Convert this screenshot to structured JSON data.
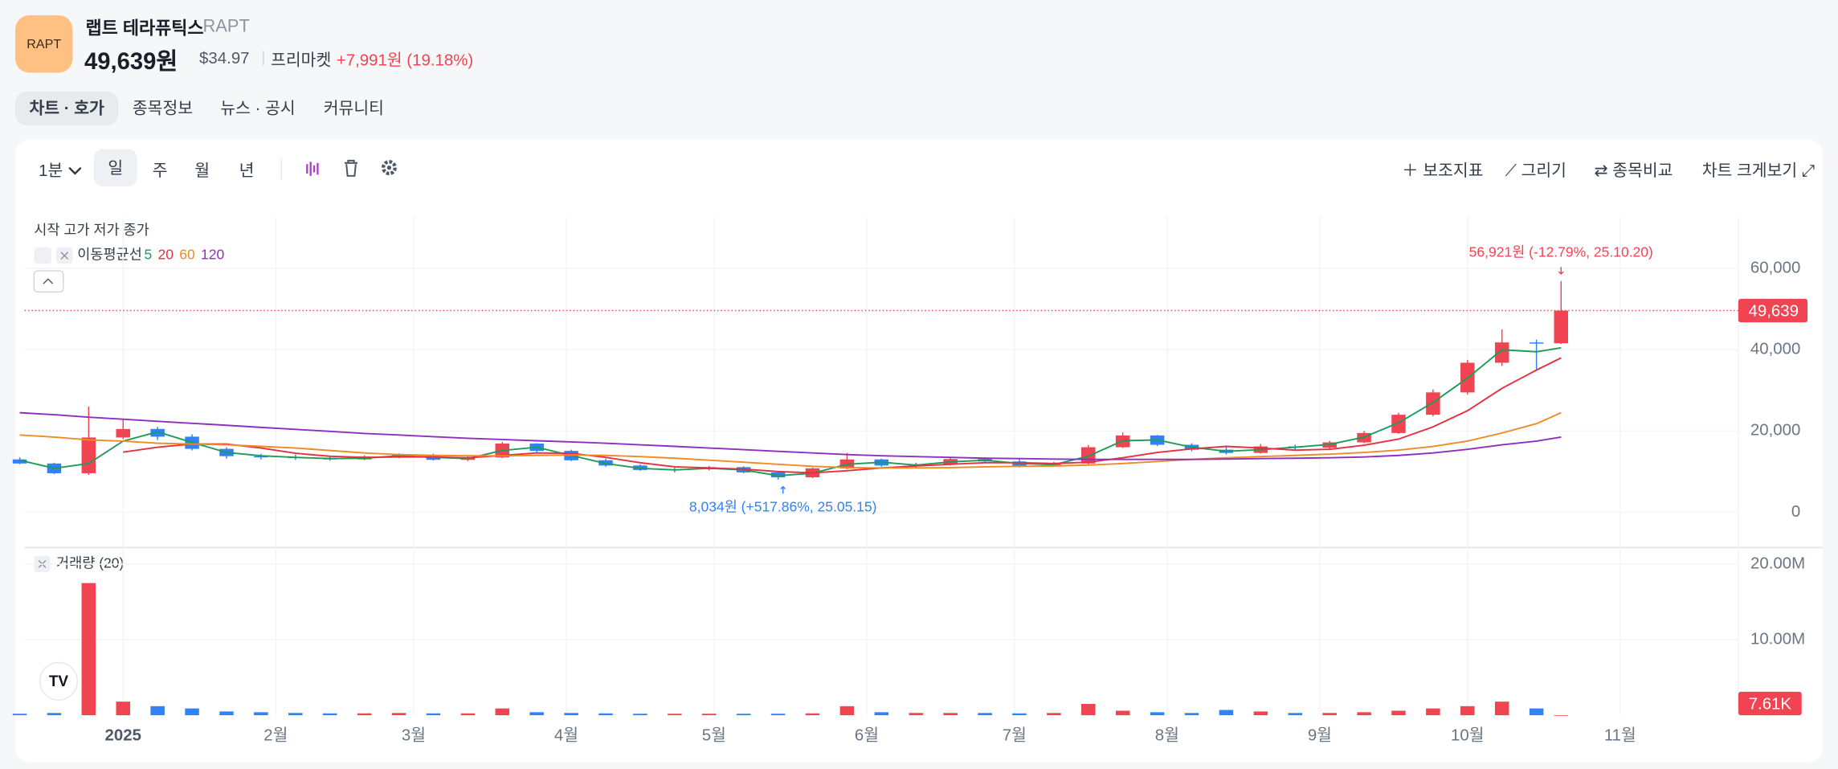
{
  "header": {
    "logo_text": "RAPT",
    "name": "랩트 테라퓨틱스",
    "ticker": "RAPT",
    "price": "49,639원",
    "usd_price": "$34.97",
    "session": "프리마켓",
    "change": "+7,991원 (19.18%)"
  },
  "tabs": [
    "차트 · 호가",
    "종목정보",
    "뉴스 · 공시",
    "커뮤니티"
  ],
  "toolbar": {
    "interval": "1분",
    "periods": [
      "일",
      "주",
      "월",
      "년"
    ],
    "actions": [
      "보조지표",
      "그리기",
      "종목비교",
      "차트 크게보기"
    ]
  },
  "chart_data": {
    "type": "candlestick",
    "legend_title": "시작 고가 저가 종가",
    "ma_label": "이동평균선",
    "up_color": "#f04452",
    "down_color": "#3182f6",
    "grid": true,
    "x": [
      "24.12.11",
      "24.12.18",
      "24.12.25",
      "25.01.01",
      "25.01.08",
      "25.01.15",
      "25.01.22",
      "25.01.29",
      "25.02.05",
      "25.02.12",
      "25.02.19",
      "25.02.26",
      "25.03.05",
      "25.03.12",
      "25.03.19",
      "25.03.26",
      "25.04.02",
      "25.04.09",
      "25.04.16",
      "25.04.23",
      "25.04.30",
      "25.05.07",
      "25.05.14",
      "25.05.21",
      "25.05.28",
      "25.06.04",
      "25.06.11",
      "25.06.18",
      "25.06.25",
      "25.07.02",
      "25.07.09",
      "25.07.16",
      "25.07.23",
      "25.07.30",
      "25.08.06",
      "25.08.13",
      "25.08.20",
      "25.08.27",
      "25.09.03",
      "25.09.10",
      "25.09.17",
      "25.09.24",
      "25.10.01",
      "25.10.08",
      "25.10.15",
      "25.10.20"
    ],
    "open": [
      13000,
      12000,
      9600,
      18400,
      20500,
      18600,
      15600,
      13800,
      13600,
      13400,
      13000,
      13700,
      14100,
      12900,
      13500,
      16900,
      15100,
      12800,
      11500,
      10400,
      10600,
      11100,
      9800,
      8600,
      10800,
      13000,
      11500,
      11800,
      13100,
      12500,
      11400,
      12000,
      16000,
      18900,
      16600,
      15400,
      14600,
      16200,
      15900,
      17200,
      19500,
      24000,
      29500,
      36800,
      41800,
      41600
    ],
    "high": [
      13500,
      12200,
      26000,
      22800,
      21000,
      19200,
      16000,
      14400,
      14200,
      14000,
      14000,
      14500,
      14400,
      13800,
      17300,
      17000,
      15400,
      13200,
      11800,
      11000,
      11400,
      11300,
      10000,
      11000,
      14600,
      13200,
      12200,
      13400,
      13500,
      13200,
      12400,
      16500,
      19600,
      19000,
      17000,
      16200,
      16800,
      16600,
      17600,
      20000,
      24500,
      30200,
      37500,
      45000,
      42500,
      56921
    ],
    "low": [
      11800,
      9400,
      9200,
      18000,
      17800,
      15200,
      13200,
      13000,
      12900,
      12700,
      12800,
      13300,
      12700,
      12600,
      13300,
      14800,
      12600,
      11200,
      10200,
      9800,
      10300,
      9600,
      8034,
      8400,
      10600,
      11200,
      11000,
      11500,
      12300,
      11000,
      11200,
      11800,
      15800,
      16300,
      15000,
      14200,
      14400,
      15400,
      15700,
      17000,
      19300,
      23600,
      29000,
      36000,
      35000,
      41400
    ],
    "close": [
      12000,
      9600,
      18400,
      20500,
      18600,
      15600,
      13800,
      13600,
      13400,
      13000,
      13700,
      14100,
      12900,
      13500,
      16900,
      15100,
      12800,
      11500,
      10400,
      10600,
      11100,
      9800,
      8600,
      10800,
      13000,
      11500,
      11800,
      13100,
      12500,
      11400,
      12000,
      16000,
      18900,
      16600,
      15400,
      14600,
      16200,
      15900,
      17200,
      19500,
      24000,
      29500,
      36800,
      41800,
      41600,
      49639
    ],
    "series": [
      {
        "name": "5",
        "color": "#1e9b57",
        "values": [
          12800,
          10800,
          12000,
          17500,
          19800,
          17200,
          14700,
          13900,
          13500,
          13200,
          13300,
          13900,
          13500,
          13200,
          15200,
          16000,
          14000,
          12000,
          10800,
          10400,
          10800,
          10400,
          9000,
          9600,
          11800,
          12300,
          11600,
          12400,
          12800,
          12000,
          11700,
          13800,
          17600,
          17800,
          16000,
          15000,
          15400,
          16000,
          16700,
          18500,
          22000,
          27000,
          33000,
          40000,
          39500,
          40500
        ]
      },
      {
        "name": "20",
        "color": "#e5303f",
        "values": [
          null,
          null,
          null,
          14800,
          16000,
          16800,
          16800,
          15800,
          14500,
          13800,
          13500,
          13600,
          13600,
          13400,
          14000,
          14600,
          14500,
          13500,
          12200,
          11200,
          10900,
          10600,
          10000,
          9700,
          10200,
          10900,
          11400,
          11800,
          12200,
          12200,
          12000,
          12300,
          13400,
          14700,
          15600,
          16200,
          15800,
          15300,
          15500,
          16500,
          18000,
          21000,
          25000,
          30500,
          35000,
          38000
        ]
      },
      {
        "name": "60",
        "color": "#f08a24",
        "values": [
          19000,
          18500,
          17800,
          17500,
          17000,
          16800,
          16600,
          16200,
          15800,
          15200,
          14600,
          14200,
          14000,
          13900,
          13900,
          14000,
          14100,
          14000,
          13700,
          13300,
          12800,
          12300,
          11800,
          11300,
          11000,
          10900,
          10900,
          11000,
          11200,
          11300,
          11400,
          11600,
          12000,
          12500,
          13000,
          13400,
          13700,
          14000,
          14300,
          14700,
          15300,
          16200,
          17500,
          19500,
          21800,
          24500
        ]
      },
      {
        "name": "120",
        "color": "#8e2fc0",
        "values": [
          24500,
          24000,
          23400,
          22900,
          22400,
          21900,
          21400,
          20900,
          20400,
          19900,
          19400,
          19000,
          18600,
          18200,
          17900,
          17600,
          17300,
          17000,
          16600,
          16200,
          15800,
          15400,
          15000,
          14600,
          14200,
          13900,
          13700,
          13500,
          13300,
          13200,
          13100,
          13000,
          13000,
          13000,
          13000,
          13100,
          13200,
          13300,
          13400,
          13600,
          14000,
          14600,
          15500,
          16600,
          17500,
          18500
        ]
      }
    ],
    "xlim": [
      "24.12.12",
      "25.11.25"
    ],
    "xticks": [
      {
        "value": "25.01.01",
        "label": "2025"
      },
      {
        "value": "25.02.01",
        "label": "2월"
      },
      {
        "value": "25.03.01",
        "label": "3월"
      },
      {
        "value": "25.04.01",
        "label": "4월"
      },
      {
        "value": "25.05.01",
        "label": "5월"
      },
      {
        "value": "25.06.01",
        "label": "6월"
      },
      {
        "value": "25.07.01",
        "label": "7월"
      },
      {
        "value": "25.08.01",
        "label": "8월"
      },
      {
        "value": "25.09.01",
        "label": "9월"
      },
      {
        "value": "25.10.01",
        "label": "10월"
      },
      {
        "value": "25.11.01",
        "label": "11월"
      }
    ],
    "ylim": [
      -8700,
      72700
    ],
    "yticks": [
      0,
      {
        "value": 20000,
        "label": "20,000"
      },
      {
        "value": 40000,
        "label": "40,000"
      },
      {
        "value": 60000,
        "label": "60,000"
      }
    ],
    "price_label": {
      "value": 49639,
      "label": "49,639"
    },
    "annotations": [
      {
        "text": "56,921원 (-12.79%, 25.10.20)",
        "x": "25.10.20",
        "value": 56921,
        "color": "#f04452"
      },
      {
        "text": "8,034원 (+517.86%, 25.05.15)",
        "x": "25.05.15",
        "value": 8034,
        "color": "#3182f6"
      }
    ],
    "volume": {
      "title": "거래량 (20)",
      "values": [
        200000,
        300000,
        17500000,
        1800000,
        1200000,
        900000,
        500000,
        400000,
        300000,
        250000,
        250000,
        300000,
        250000,
        250000,
        900000,
        400000,
        300000,
        250000,
        200000,
        200000,
        200000,
        200000,
        200000,
        250000,
        1200000,
        400000,
        300000,
        300000,
        300000,
        250000,
        300000,
        1500000,
        600000,
        400000,
        300000,
        700000,
        500000,
        300000,
        300000,
        400000,
        600000,
        900000,
        1200000,
        1800000,
        900000,
        7610
      ],
      "ylim": [
        0,
        22200000
      ],
      "yticks": [
        {
          "value": 10000000,
          "label": "10.00M"
        },
        {
          "value": 20000000,
          "label": "20.00M"
        }
      ],
      "label": {
        "value": 7610,
        "label": "7.61K"
      }
    }
  }
}
